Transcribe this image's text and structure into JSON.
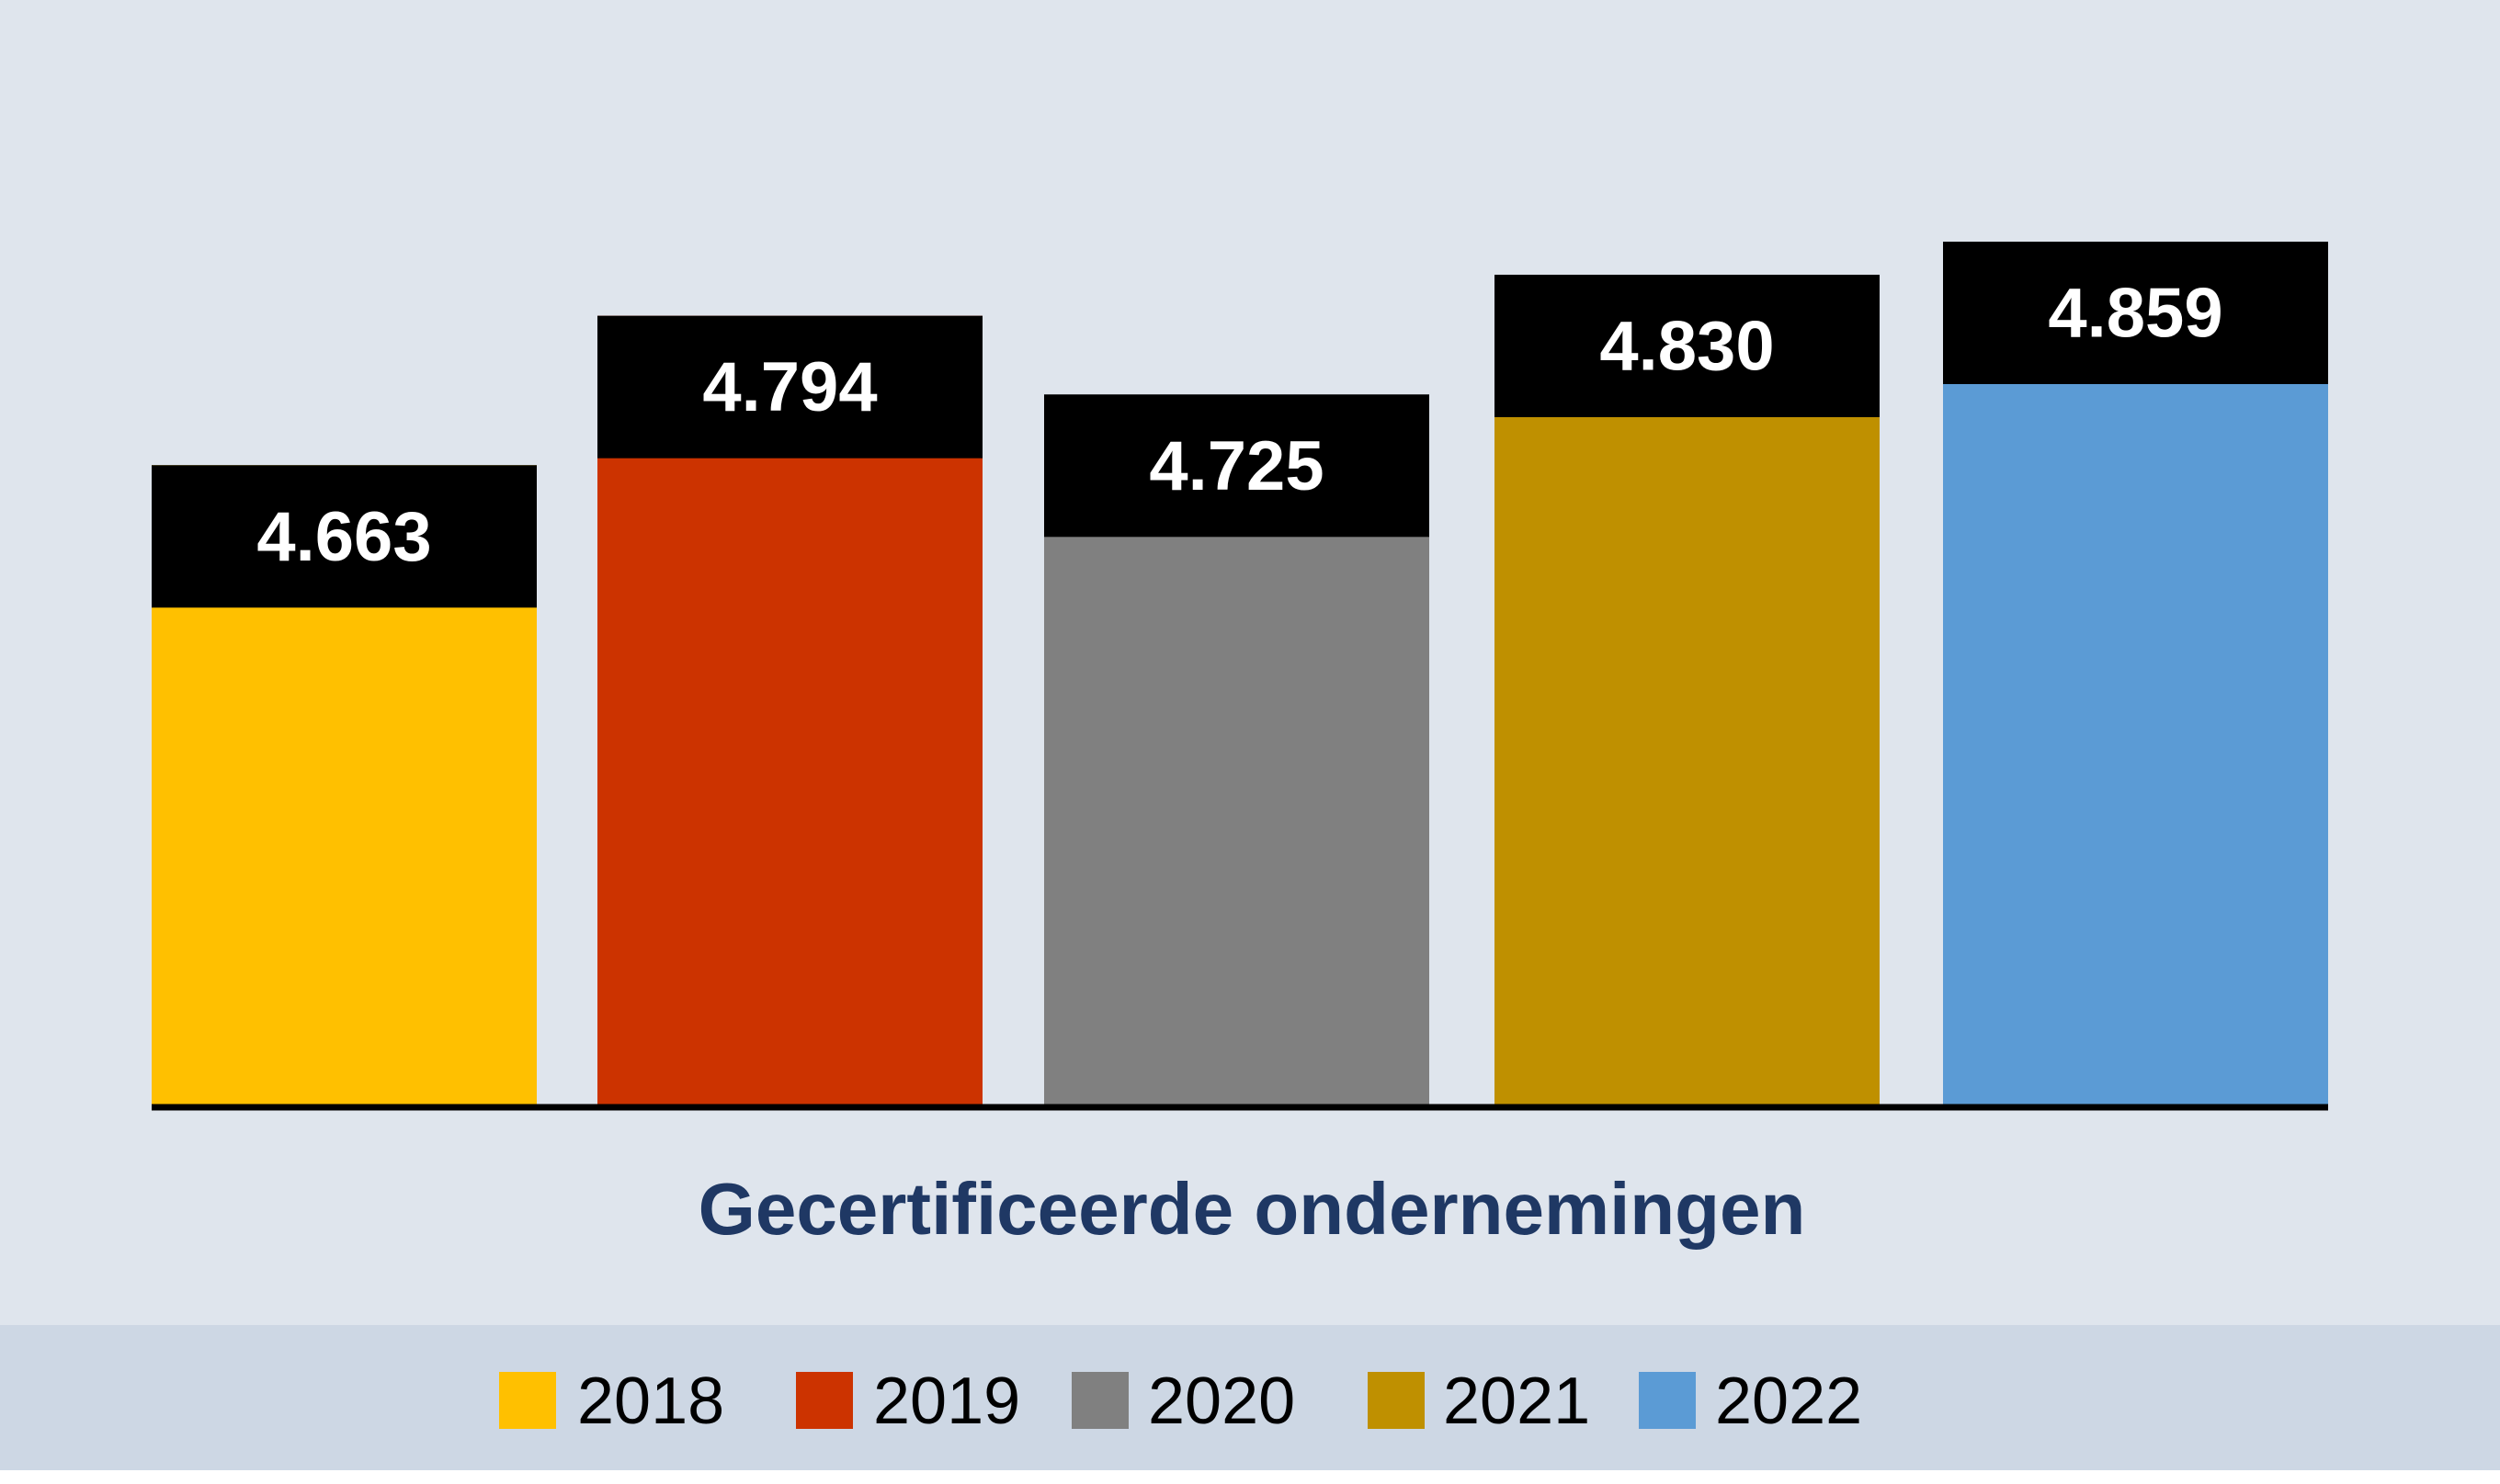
{
  "chart_data": {
    "type": "bar",
    "categories": [
      "2018",
      "2019",
      "2020",
      "2021",
      "2022"
    ],
    "values": [
      4663,
      4794,
      4725,
      4830,
      4859
    ],
    "value_labels": [
      "4.663",
      "4.794",
      "4.725",
      "4.830",
      "4.859"
    ],
    "xlabel": "Gecertificeerde ondernemingen",
    "legend_position": "bottom",
    "ylim": [
      4100,
      5000
    ],
    "grid": false
  },
  "colors": {
    "background": "#dfe5ed",
    "legend_background": "#cdd7e4",
    "bars": [
      "#ffc000",
      "#cc3300",
      "#808080",
      "#bf9000",
      "#5b9bd5"
    ],
    "label_box": "#000000",
    "title": "#1f3864"
  }
}
